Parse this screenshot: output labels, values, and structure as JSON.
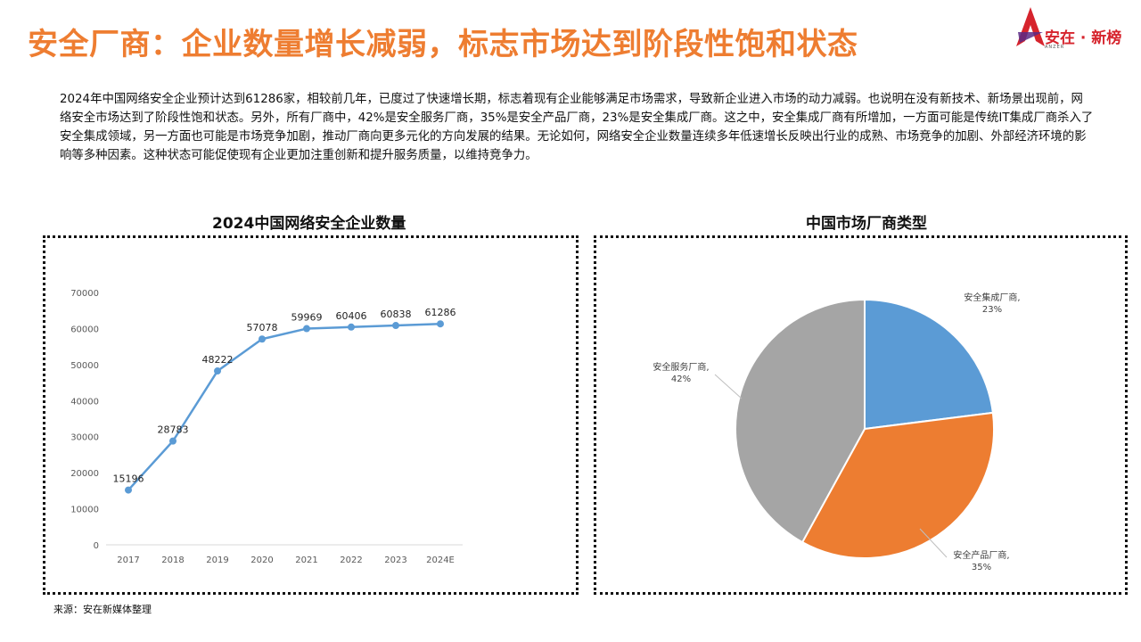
{
  "header": {
    "title": "安全厂商：企业数量增长减弱，标志市场达到阶段性饱和状态",
    "logo_text": "安在 · 新榜",
    "logo_sub": "ANZER"
  },
  "intro": "2024年中国网络安全企业预计达到61286家，相较前几年，已度过了快速增长期，标志着现有企业能够满足市场需求，导致新企业进入市场的动力减弱。也说明在没有新技术、新场景出现前，网络安全市场达到了阶段性饱和状态。另外，所有厂商中，42%是安全服务厂商，35%是安全产品厂商，23%是安全集成厂商。这之中，安全集成厂商有所增加，一方面可能是传统IT集成厂商杀入了安全集成领域，另一方面也可能是市场竞争加剧，推动厂商向更多元化的方向发展的结果。无论如何，网络安全企业数量连续多年低速增长反映出行业的成熟、市场竞争的加剧、外部经济环境的影响等多种因素。这种状态可能促使现有企业更加注重创新和提升服务质量，以维持竞争力。",
  "source": "来源：安在新媒体整理",
  "colors": {
    "accent": "#ee7d31",
    "line": "#5b9bd5",
    "logo": "#d6242d"
  },
  "chart_data": [
    {
      "type": "line",
      "title": "2024中国网络安全企业数量",
      "categories": [
        "2017",
        "2018",
        "2019",
        "2020",
        "2021",
        "2022",
        "2023",
        "2024E"
      ],
      "series": [
        {
          "values": [
            15196,
            28783,
            48222,
            57078,
            59969,
            60406,
            60838,
            61286
          ]
        }
      ],
      "yticks": [
        0,
        10000,
        20000,
        30000,
        40000,
        50000,
        60000,
        70000
      ],
      "ylim": [
        0,
        70000
      ],
      "grid": false,
      "data_labels": true
    },
    {
      "type": "pie",
      "title": "中国市场厂商类型",
      "slices": [
        {
          "label": "安全集成厂商",
          "percent_label": "23%",
          "value": 23,
          "color": "#5b9bd5"
        },
        {
          "label": "安全产品厂商",
          "percent_label": "35%",
          "value": 35,
          "color": "#ed7d31"
        },
        {
          "label": "安全服务厂商",
          "percent_label": "42%",
          "value": 42,
          "color": "#a5a5a5"
        }
      ]
    }
  ]
}
